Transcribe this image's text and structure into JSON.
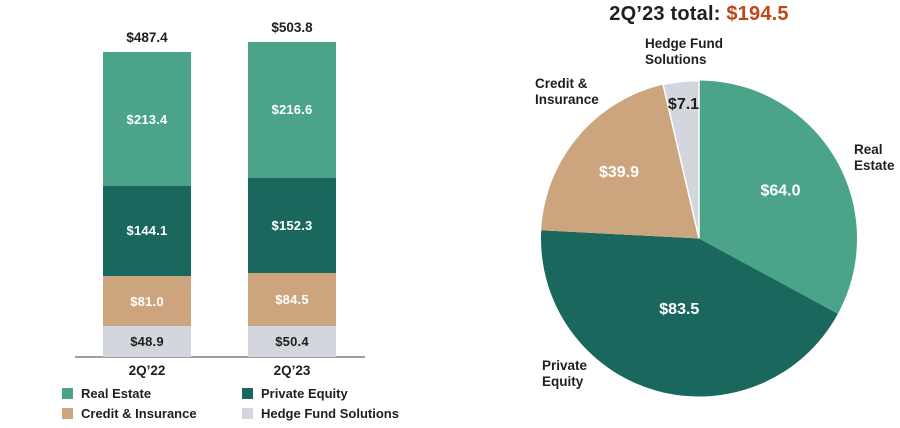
{
  "colors": {
    "real_estate": "#4BA48A",
    "private_equity": "#1A685D",
    "credit_insurance": "#CCA57E",
    "hedge_fund": "#D4D6DE",
    "accent": "#BF4716",
    "text": "#1F1F1F",
    "axis": "#9AA0A5"
  },
  "legend": {
    "items": [
      {
        "label": "Real Estate",
        "color": "real_estate"
      },
      {
        "label": "Private Equity",
        "color": "private_equity"
      },
      {
        "label": "Credit & Insurance",
        "color": "credit_insurance"
      },
      {
        "label": "Hedge Fund Solutions",
        "color": "hedge_fund"
      }
    ]
  },
  "chart_data": [
    {
      "type": "bar",
      "stacked": true,
      "categories": [
        "2Q’22",
        "2Q’23"
      ],
      "series": [
        {
          "name": "Real Estate",
          "color": "real_estate",
          "values": [
            213.4,
            216.6
          ],
          "labels": [
            "$213.4",
            "$216.6"
          ]
        },
        {
          "name": "Private Equity",
          "color": "private_equity",
          "values": [
            144.1,
            152.3
          ],
          "labels": [
            "$144.1",
            "$152.3"
          ]
        },
        {
          "name": "Credit & Insurance",
          "color": "credit_insurance",
          "values": [
            81.0,
            84.5
          ],
          "labels": [
            "$81.0",
            "$84.5"
          ]
        },
        {
          "name": "Hedge Fund Solutions",
          "color": "hedge_fund",
          "values": [
            48.9,
            50.4
          ],
          "labels": [
            "$48.9",
            "$50.4"
          ]
        }
      ],
      "totals": [
        487.4,
        503.8
      ],
      "total_labels": [
        "$487.4",
        "$503.8"
      ],
      "ylim": [
        0,
        540
      ],
      "grid": false,
      "legend_position": "bottom-left"
    },
    {
      "type": "pie",
      "title": "2Q’23 total: $194.5",
      "title_prefix": "2Q’23 total:",
      "title_value": "$194.5",
      "total": 194.5,
      "slices": [
        {
          "label": "Real Estate",
          "value": 64.0,
          "display": "$64.0",
          "color": "real_estate"
        },
        {
          "label": "Private Equity",
          "value": 83.5,
          "display": "$83.5",
          "color": "private_equity"
        },
        {
          "label": "Credit & Insurance",
          "value": 39.9,
          "display": "$39.9",
          "color": "credit_insurance"
        },
        {
          "label": "Hedge Fund Solutions",
          "value": 7.1,
          "display": "$7.1",
          "color": "hedge_fund"
        }
      ]
    }
  ]
}
